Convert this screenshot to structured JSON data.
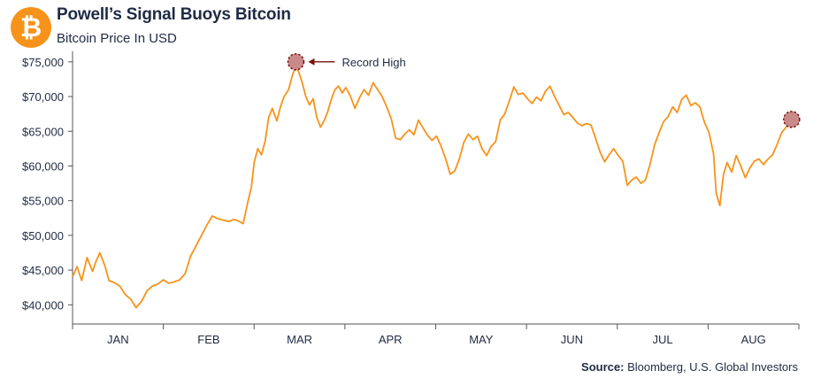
{
  "header": {
    "title": "Powell’s Signal Buoys Bitcoin",
    "subtitle": "Bitcoin Price In USD",
    "logo_icon": "bitcoin-icon"
  },
  "source": {
    "label": "Source:",
    "text": "Bloomberg, U.S. Global Investors"
  },
  "colors": {
    "line": "#f7931a",
    "logo": "#f7931a",
    "marker_fill": "#c98a8a",
    "marker_stroke": "#7a1010",
    "arrow": "#7a1010",
    "text": "#1f2a44"
  },
  "chart_data": {
    "type": "line",
    "title": "Powell’s Signal Buoys Bitcoin",
    "subtitle": "Bitcoin Price In USD",
    "ylim": [
      38000,
      76000
    ],
    "y_ticks": [
      40000,
      45000,
      50000,
      55000,
      60000,
      65000,
      70000,
      75000
    ],
    "y_tick_labels": [
      "$40,000",
      "$45,000",
      "$50,000",
      "$55,000",
      "$60,000",
      "$65,000",
      "$70,000",
      "$75,000"
    ],
    "x_tick_labels": [
      "JAN",
      "FEB",
      "MAR",
      "APR",
      "MAY",
      "JUN",
      "JUL",
      "AUG"
    ],
    "x_domain_months": [
      0,
      8
    ],
    "series": [
      {
        "points": [
          [
            0.0,
            44000
          ],
          [
            0.05,
            45500
          ],
          [
            0.1,
            43500
          ],
          [
            0.16,
            46800
          ],
          [
            0.22,
            44800
          ],
          [
            0.25,
            46000
          ],
          [
            0.3,
            47500
          ],
          [
            0.36,
            45500
          ],
          [
            0.4,
            43500
          ],
          [
            0.46,
            43200
          ],
          [
            0.52,
            42700
          ],
          [
            0.58,
            41500
          ],
          [
            0.64,
            40800
          ],
          [
            0.7,
            39600
          ],
          [
            0.76,
            40500
          ],
          [
            0.82,
            42000
          ],
          [
            0.88,
            42700
          ],
          [
            0.94,
            43000
          ],
          [
            1.0,
            43600
          ],
          [
            1.06,
            43100
          ],
          [
            1.12,
            43300
          ],
          [
            1.18,
            43600
          ],
          [
            1.24,
            44500
          ],
          [
            1.3,
            47000
          ],
          [
            1.36,
            48500
          ],
          [
            1.42,
            50000
          ],
          [
            1.48,
            51500
          ],
          [
            1.54,
            52800
          ],
          [
            1.6,
            52400
          ],
          [
            1.66,
            52200
          ],
          [
            1.72,
            52000
          ],
          [
            1.78,
            52300
          ],
          [
            1.84,
            52000
          ],
          [
            1.88,
            51700
          ],
          [
            1.93,
            54800
          ],
          [
            1.97,
            57000
          ],
          [
            2.0,
            60500
          ],
          [
            2.04,
            62500
          ],
          [
            2.08,
            61600
          ],
          [
            2.12,
            63500
          ],
          [
            2.16,
            67000
          ],
          [
            2.2,
            68300
          ],
          [
            2.25,
            66500
          ],
          [
            2.29,
            68500
          ],
          [
            2.33,
            70000
          ],
          [
            2.38,
            71000
          ],
          [
            2.42,
            73000
          ],
          [
            2.46,
            74500
          ],
          [
            2.5,
            73200
          ],
          [
            2.53,
            72000
          ],
          [
            2.57,
            70000
          ],
          [
            2.61,
            68800
          ],
          [
            2.65,
            69700
          ],
          [
            2.69,
            67000
          ],
          [
            2.73,
            65600
          ],
          [
            2.77,
            66500
          ],
          [
            2.81,
            67800
          ],
          [
            2.85,
            69600
          ],
          [
            2.89,
            71000
          ],
          [
            2.93,
            71500
          ],
          [
            2.97,
            70500
          ],
          [
            3.01,
            71300
          ],
          [
            3.06,
            70100
          ],
          [
            3.11,
            68300
          ],
          [
            3.16,
            69800
          ],
          [
            3.21,
            71000
          ],
          [
            3.26,
            70200
          ],
          [
            3.31,
            72000
          ],
          [
            3.36,
            71000
          ],
          [
            3.41,
            70000
          ],
          [
            3.46,
            68500
          ],
          [
            3.51,
            66800
          ],
          [
            3.56,
            64000
          ],
          [
            3.61,
            63800
          ],
          [
            3.66,
            64600
          ],
          [
            3.71,
            65200
          ],
          [
            3.76,
            64500
          ],
          [
            3.81,
            66600
          ],
          [
            3.86,
            65500
          ],
          [
            3.91,
            64400
          ],
          [
            3.96,
            63700
          ],
          [
            4.01,
            64300
          ],
          [
            4.06,
            62800
          ],
          [
            4.11,
            61000
          ],
          [
            4.16,
            58800
          ],
          [
            4.21,
            59300
          ],
          [
            4.26,
            61000
          ],
          [
            4.31,
            63400
          ],
          [
            4.36,
            64600
          ],
          [
            4.41,
            63800
          ],
          [
            4.46,
            64300
          ],
          [
            4.51,
            62500
          ],
          [
            4.56,
            61500
          ],
          [
            4.61,
            62800
          ],
          [
            4.66,
            63500
          ],
          [
            4.71,
            66600
          ],
          [
            4.76,
            67500
          ],
          [
            4.81,
            69300
          ],
          [
            4.86,
            71400
          ],
          [
            4.91,
            70300
          ],
          [
            4.96,
            70500
          ],
          [
            5.01,
            69700
          ],
          [
            5.06,
            69000
          ],
          [
            5.11,
            69900
          ],
          [
            5.16,
            69400
          ],
          [
            5.21,
            70800
          ],
          [
            5.26,
            71500
          ],
          [
            5.31,
            70000
          ],
          [
            5.36,
            68700
          ],
          [
            5.41,
            67400
          ],
          [
            5.46,
            67700
          ],
          [
            5.51,
            67000
          ],
          [
            5.56,
            66200
          ],
          [
            5.61,
            65800
          ],
          [
            5.66,
            66100
          ],
          [
            5.71,
            65900
          ],
          [
            5.76,
            64000
          ],
          [
            5.81,
            62000
          ],
          [
            5.86,
            60600
          ],
          [
            5.91,
            61600
          ],
          [
            5.96,
            62500
          ],
          [
            6.01,
            61500
          ],
          [
            6.06,
            60700
          ],
          [
            6.11,
            57200
          ],
          [
            6.16,
            58000
          ],
          [
            6.21,
            58400
          ],
          [
            6.26,
            57500
          ],
          [
            6.31,
            58000
          ],
          [
            6.36,
            60200
          ],
          [
            6.41,
            63000
          ],
          [
            6.46,
            64800
          ],
          [
            6.51,
            66400
          ],
          [
            6.56,
            67100
          ],
          [
            6.61,
            68500
          ],
          [
            6.66,
            67700
          ],
          [
            6.71,
            69600
          ],
          [
            6.76,
            70200
          ],
          [
            6.81,
            68700
          ],
          [
            6.86,
            69100
          ],
          [
            6.91,
            68500
          ],
          [
            6.96,
            66300
          ],
          [
            7.01,
            64800
          ],
          [
            7.06,
            61800
          ],
          [
            7.09,
            56000
          ],
          [
            7.13,
            54300
          ],
          [
            7.17,
            58800
          ],
          [
            7.21,
            60500
          ],
          [
            7.26,
            59100
          ],
          [
            7.31,
            61500
          ],
          [
            7.36,
            60000
          ],
          [
            7.41,
            58300
          ],
          [
            7.46,
            59700
          ],
          [
            7.51,
            60700
          ],
          [
            7.56,
            61000
          ],
          [
            7.61,
            60200
          ],
          [
            7.66,
            61000
          ],
          [
            7.71,
            61600
          ],
          [
            7.76,
            63100
          ],
          [
            7.81,
            64800
          ],
          [
            7.86,
            65600
          ],
          [
            7.92,
            66700
          ]
        ]
      }
    ],
    "annotations": [
      {
        "label": "Record High",
        "x": 2.46,
        "y": 75000
      },
      {
        "label": "",
        "x": 7.92,
        "y": 66700
      }
    ]
  }
}
